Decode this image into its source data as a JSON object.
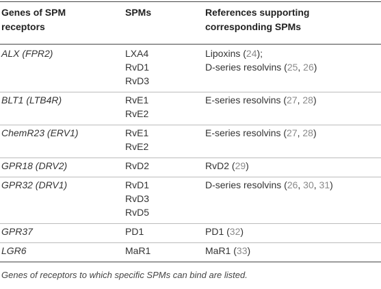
{
  "table": {
    "header": [
      [
        "Genes of SPM",
        "receptors"
      ],
      [
        "SPMs"
      ],
      [
        "References supporting",
        "corresponding SPMs"
      ]
    ],
    "rows": [
      {
        "gene": "ALX (FPR2)",
        "spms": [
          "LXA4",
          "RvD1",
          "RvD3"
        ],
        "refs": [
          [
            "Lipoxins (",
            "24",
            ");"
          ],
          [
            "D-series resolvins (",
            "25",
            ", ",
            "26",
            ")"
          ]
        ]
      },
      {
        "gene": "BLT1 (LTB4R)",
        "spms": [
          "RvE1",
          "RvE2"
        ],
        "refs": [
          [
            "E-series resolvins (",
            "27",
            ", ",
            "28",
            ")"
          ]
        ]
      },
      {
        "gene": "ChemR23 (ERV1)",
        "spms": [
          "RvE1",
          "RvE2"
        ],
        "refs": [
          [
            "E-series resolvins (",
            "27",
            ", ",
            "28",
            ")"
          ]
        ]
      },
      {
        "gene": "GPR18 (DRV2)",
        "spms": [
          "RvD2"
        ],
        "refs": [
          [
            "RvD2 (",
            "29",
            ")"
          ]
        ]
      },
      {
        "gene": "GPR32 (DRV1)",
        "spms": [
          "RvD1",
          "RvD3",
          "RvD5"
        ],
        "refs": [
          [
            "D-series resolvins (",
            "26",
            ", ",
            "30",
            ", ",
            "31",
            ")"
          ]
        ]
      },
      {
        "gene": "GPR37",
        "spms": [
          "PD1"
        ],
        "refs": [
          [
            "PD1 (",
            "32",
            ")"
          ]
        ]
      },
      {
        "gene": "LGR6",
        "spms": [
          "MaR1"
        ],
        "refs": [
          [
            "MaR1 (",
            "33",
            ")"
          ]
        ]
      }
    ],
    "footnote": "Genes of receptors to which specific SPMs can bind are listed."
  }
}
